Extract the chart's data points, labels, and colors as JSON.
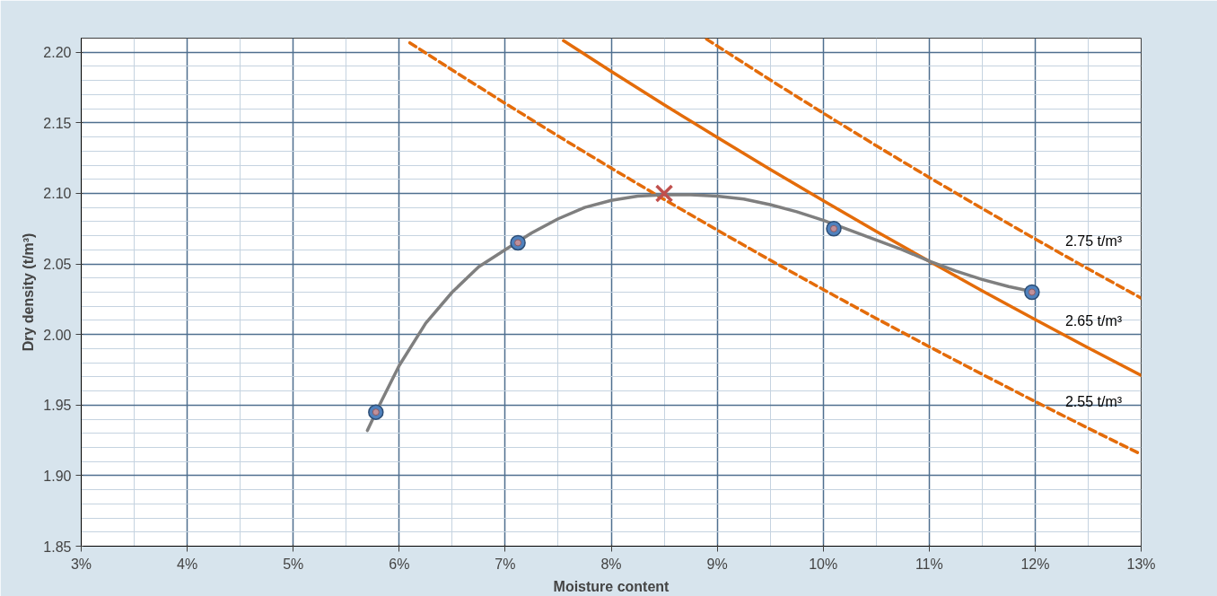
{
  "chart_data": {
    "type": "line",
    "xlabel": "Moisture content",
    "ylabel": "Dry density (t/m³)",
    "xlim": [
      3,
      13
    ],
    "ylim": [
      1.85,
      2.21
    ],
    "xticks": [
      {
        "value": 3,
        "label": "3%"
      },
      {
        "value": 4,
        "label": "4%"
      },
      {
        "value": 5,
        "label": "5%"
      },
      {
        "value": 6,
        "label": "6%"
      },
      {
        "value": 7,
        "label": "7%"
      },
      {
        "value": 8,
        "label": "8%"
      },
      {
        "value": 9,
        "label": "9%"
      },
      {
        "value": 10,
        "label": "10%"
      },
      {
        "value": 11,
        "label": "11%"
      },
      {
        "value": 12,
        "label": "12%"
      },
      {
        "value": 13,
        "label": "13%"
      }
    ],
    "yticks": [
      {
        "value": 1.85,
        "label": "1.85"
      },
      {
        "value": 1.9,
        "label": "1.90"
      },
      {
        "value": 1.95,
        "label": "1.95"
      },
      {
        "value": 2.0,
        "label": "2.00"
      },
      {
        "value": 2.05,
        "label": "2.05"
      },
      {
        "value": 2.1,
        "label": "2.10"
      },
      {
        "value": 2.15,
        "label": "2.15"
      },
      {
        "value": 2.2,
        "label": "2.20"
      }
    ],
    "grid": true,
    "legend": false,
    "series": [
      {
        "name": "2.75 t/m³",
        "color": "#e46c0a",
        "line_style": "dashed",
        "x": [
          8.9,
          9.5,
          10,
          10.5,
          11,
          11.5,
          12,
          12.5,
          13
        ],
        "values": [
          2.2093,
          2.1804,
          2.1569,
          2.1338,
          2.1113,
          2.0893,
          2.0677,
          2.0465,
          2.0258
        ]
      },
      {
        "name": "2.65 t/m³",
        "color": "#e46c0a",
        "line_style": "solid",
        "x": [
          7.55,
          8,
          8.5,
          9,
          9.5,
          10,
          10.5,
          11,
          11.5,
          12,
          12.5,
          13
        ],
        "values": [
          2.2082,
          2.1865,
          2.1628,
          2.1397,
          2.117,
          2.0949,
          2.0731,
          2.0519,
          2.031,
          2.0106,
          1.9906,
          1.971
        ]
      },
      {
        "name": "2.55 t/m³",
        "color": "#e46c0a",
        "line_style": "dashed",
        "x": [
          6.1,
          6.5,
          7,
          7.5,
          8,
          8.5,
          9,
          9.5,
          10,
          10.5,
          11,
          11.5,
          12,
          12.5,
          13
        ],
        "values": [
          2.2067,
          2.1874,
          2.1638,
          2.1406,
          2.1179,
          2.0957,
          2.074,
          2.0527,
          2.0319,
          2.0114,
          1.9914,
          1.9718,
          1.9525,
          1.9336,
          1.9151
        ]
      },
      {
        "color": "#7f7f7f",
        "line_style": "solid",
        "x": [
          5.7,
          5.8,
          6.0,
          6.25,
          6.5,
          6.75,
          7.0,
          7.25,
          7.5,
          7.75,
          8.0,
          8.25,
          8.5,
          8.75,
          9.0,
          9.25,
          9.5,
          9.75,
          10.0,
          10.25,
          10.5,
          10.75,
          11.0,
          11.25,
          11.5,
          11.75,
          12.0
        ],
        "values": [
          1.932,
          1.948,
          1.978,
          2.008,
          2.03,
          2.048,
          2.06,
          2.072,
          2.082,
          2.09,
          2.095,
          2.098,
          2.099,
          2.099,
          2.098,
          2.096,
          2.092,
          2.087,
          2.081,
          2.074,
          2.067,
          2.06,
          2.052,
          2.045,
          2.039,
          2.034,
          2.03
        ]
      },
      {
        "type": "scatter",
        "color": "#4f81bd",
        "marker": "circle",
        "x": [
          5.78,
          7.12,
          10.1,
          11.97
        ],
        "values": [
          1.945,
          2.065,
          2.075,
          2.03
        ]
      },
      {
        "type": "scatter",
        "color": "#c0504d",
        "marker": "cross",
        "x": [
          8.5
        ],
        "values": [
          2.1
        ]
      }
    ]
  }
}
